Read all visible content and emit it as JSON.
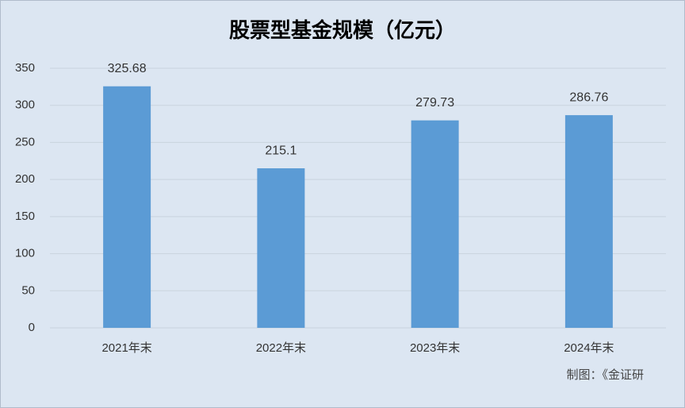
{
  "chart_data": {
    "type": "bar",
    "title": "股票型基金规模（亿元）",
    "categories": [
      "2021年末",
      "2022年末",
      "2023年末",
      "2024年末"
    ],
    "values": [
      325.68,
      215.1,
      279.73,
      286.76
    ],
    "color": "#5b9bd5",
    "ylim": [
      0,
      350
    ],
    "yticks": [
      0,
      50,
      100,
      150,
      200,
      250,
      300,
      350
    ],
    "grid": true,
    "note": "制图：《金证研"
  }
}
